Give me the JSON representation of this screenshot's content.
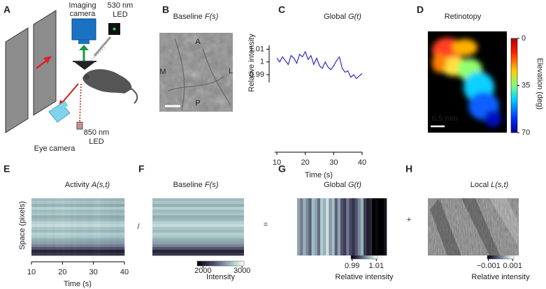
{
  "panel_letters": [
    "A",
    "B",
    "C",
    "D",
    "E",
    "F",
    "G",
    "H"
  ],
  "panel_a": {
    "imaging_camera": [
      "Imaging",
      "camera"
    ],
    "led_530": [
      "530 nm",
      "LED"
    ],
    "led_850": [
      "850 nm",
      "LED"
    ],
    "eye_camera": "Eye camera"
  },
  "panel_b": {
    "title": {
      "text": "Baseline ",
      "math": "F(s)"
    },
    "labels": [
      "A",
      "M",
      "L",
      "P"
    ]
  },
  "panel_c": {
    "type": "line",
    "title": {
      "text": "Global ",
      "math": "G(t)"
    },
    "y_label": "Relative intensity",
    "x_label": "Time (s)",
    "x": [
      10,
      11,
      12,
      13,
      14,
      15,
      16,
      17,
      18,
      19,
      20,
      21,
      22,
      23,
      24,
      25,
      26,
      27,
      28,
      29,
      30,
      31,
      32,
      33,
      34,
      35,
      36,
      37,
      38,
      39,
      40
    ],
    "values": [
      1.003,
      1.0,
      1.004,
      1.001,
      0.998,
      1.005,
      1.003,
      0.999,
      1.006,
      1.004,
      1.008,
      1.002,
      1.005,
      0.998,
      1.003,
      0.997,
      0.995,
      1.0,
      0.996,
      0.994,
      0.997,
      1.001,
      1.004,
      0.995,
      0.992,
      0.993,
      0.988,
      0.99,
      0.987,
      0.989,
      0.991
    ],
    "color": "#2b2bd0",
    "xlim": [
      10,
      40
    ],
    "ylim": [
      0.984,
      1.013
    ],
    "xticks": [
      10,
      20,
      30,
      40
    ],
    "yticks": [
      0.99,
      1,
      1.01
    ]
  },
  "panel_d": {
    "title": "Retinotopy",
    "scale_bar": "0.5 mm",
    "colorbar": {
      "label": "Elevation (deg)",
      "lim": [
        0,
        70
      ],
      "ticks": [
        0,
        35,
        70
      ]
    }
  },
  "panel_e": {
    "title": {
      "text": "Activity ",
      "math": "A(s,t)"
    },
    "y_label": "Space (pixels)",
    "x_label": "Time (s)",
    "xlim": [
      10,
      40
    ],
    "xticks": [
      10,
      20,
      30,
      40
    ]
  },
  "operators": [
    "/",
    "=",
    "+"
  ],
  "panel_f": {
    "title": {
      "text": "Baseline ",
      "math": "F(s)"
    },
    "rows": [
      2700,
      2750,
      2650,
      2800,
      2700,
      2750,
      2650,
      2700,
      2800,
      2850,
      2750,
      2700,
      2800,
      2750,
      2650,
      2600,
      2500,
      2300,
      2050,
      2150
    ],
    "colorbar": {
      "label": "Intensity",
      "lim": [
        1850,
        3050
      ],
      "ticks": [
        2000,
        3000
      ]
    }
  },
  "panel_g": {
    "title": {
      "text": "Global ",
      "math": "G(t)"
    },
    "colorbar": {
      "label": "Relative intensity",
      "lim": [
        0.989,
        1.011
      ],
      "ticks": [
        0.99,
        1.01
      ]
    }
  },
  "panel_h": {
    "title": {
      "text": "Local ",
      "math": "L(s,t)"
    },
    "colorbar": {
      "label": "Relative intensity",
      "lim": [
        -0.0011,
        0.0011
      ],
      "ticks": [
        {
          "value": -0.001,
          "label": "−0.001"
        },
        0.001
      ]
    }
  }
}
